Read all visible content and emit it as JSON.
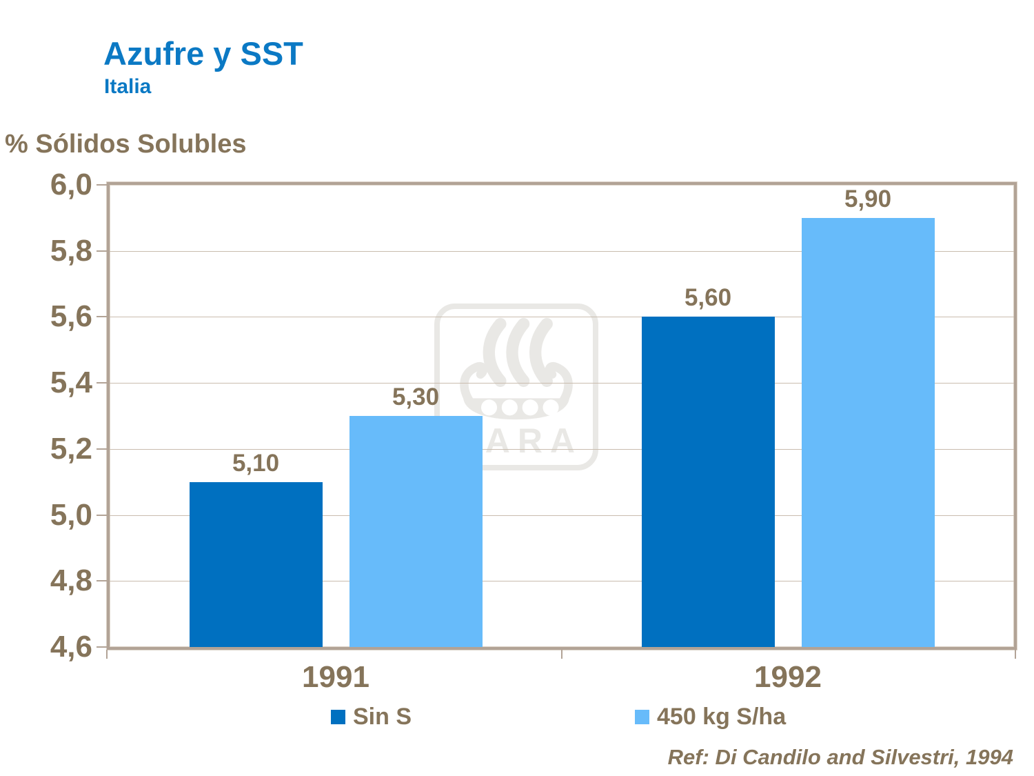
{
  "page": {
    "title": "Azufre y SST",
    "subtitle": "Italia"
  },
  "y_axis_title": "% Sólidos Solubles",
  "chart_data": {
    "type": "bar",
    "title": "Azufre y SST (Italia)",
    "categories": [
      "1991",
      "1992"
    ],
    "series": [
      {
        "name": "Sin S",
        "color": "#0070C0",
        "values": [
          5.1,
          5.6
        ],
        "value_labels": [
          "5,10",
          "5,60"
        ]
      },
      {
        "name": "450 kg S/ha",
        "color": "#67BBFA",
        "values": [
          5.3,
          5.9
        ],
        "value_labels": [
          "5,30",
          "5,90"
        ]
      }
    ],
    "ylabel": "% Sólidos Solubles",
    "xlabel": "",
    "ylim": [
      4.6,
      6.0
    ],
    "ytick_step": 0.2,
    "yticks": [
      {
        "value": 4.6,
        "label": "4,6"
      },
      {
        "value": 4.8,
        "label": "4,8"
      },
      {
        "value": 5.0,
        "label": "5,0"
      },
      {
        "value": 5.2,
        "label": "5,2"
      },
      {
        "value": 5.4,
        "label": "5,4"
      },
      {
        "value": 5.6,
        "label": "5,6"
      },
      {
        "value": 5.8,
        "label": "5,8"
      },
      {
        "value": 6.0,
        "label": "6,0"
      }
    ],
    "grid": true,
    "legend_position": "bottom"
  },
  "watermark": {
    "text": "YARA"
  },
  "footer": {
    "reference": "Ref: Di Candilo and Silvestri, 1994"
  },
  "colors": {
    "title_blue": "#0B79C4",
    "text_taupe": "#85745A",
    "series_dark_blue": "#0070C0",
    "series_light_blue": "#67BBFA",
    "frame_tan": "#B2A396",
    "gridline": "#C9BCAE",
    "watermark_gray": "#E9E8E5"
  }
}
